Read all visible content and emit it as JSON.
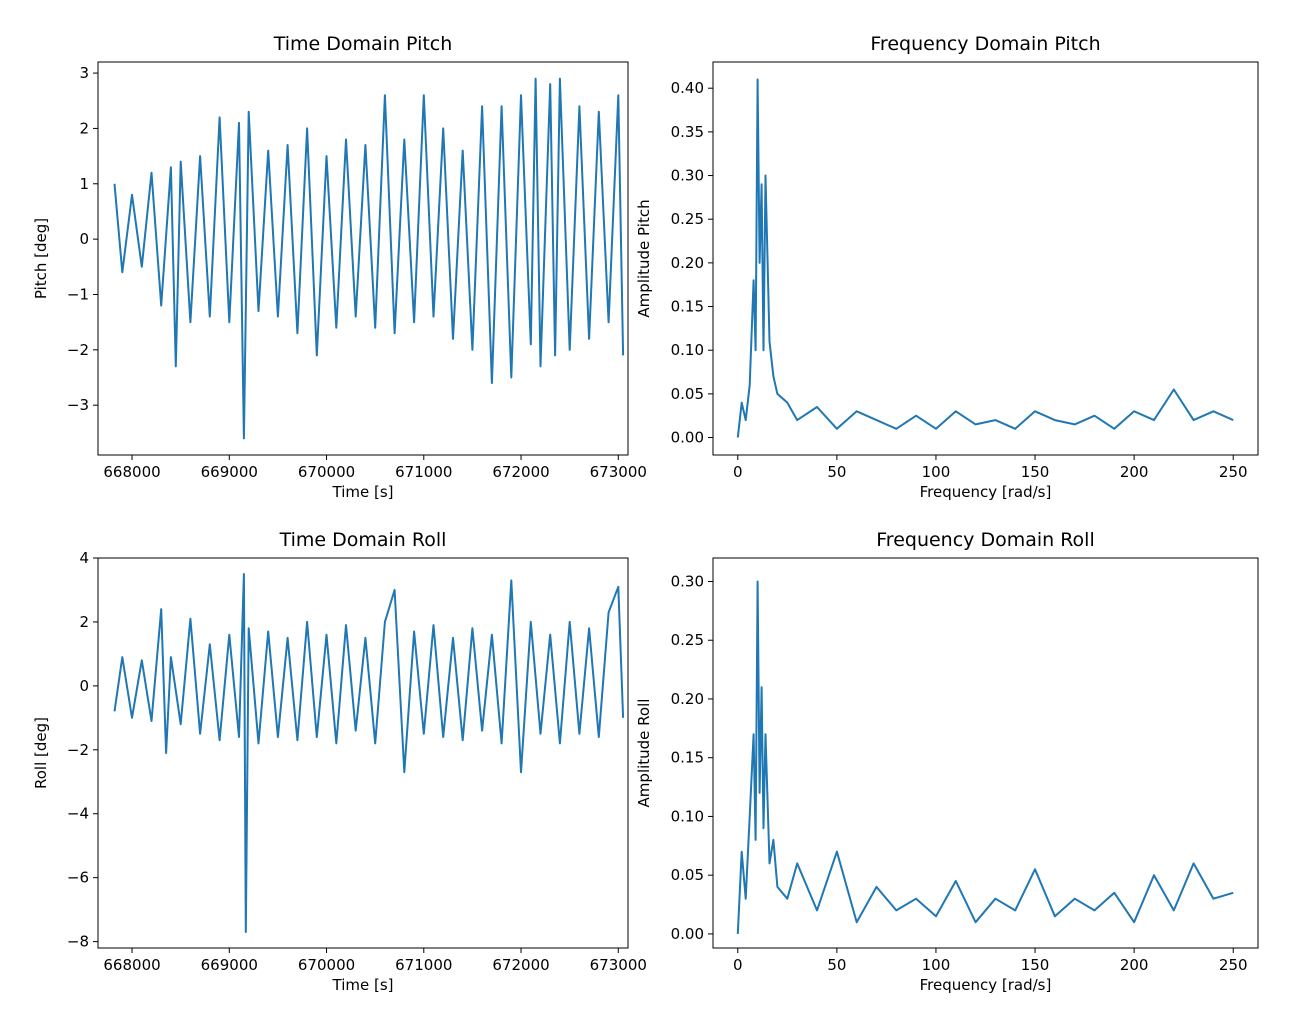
{
  "figure": {
    "line_color": "#1f77b4",
    "background": "#ffffff"
  },
  "chart_data": [
    {
      "type": "line",
      "title": "Time Domain Pitch",
      "xlabel": "Time [s]",
      "ylabel": "Pitch [deg]",
      "xlim": [
        667650,
        673100
      ],
      "ylim": [
        -3.9,
        3.2
      ],
      "xticks": [
        668000,
        669000,
        670000,
        671000,
        672000,
        673000
      ],
      "yticks": [
        -3,
        -2,
        -1,
        0,
        1,
        2,
        3
      ],
      "xtick_labels": [
        "668000",
        "669000",
        "670000",
        "671000",
        "672000",
        "673000"
      ],
      "ytick_labels": [
        "−3",
        "−2",
        "−1",
        "0",
        "1",
        "2",
        "3"
      ],
      "grid": false,
      "series": [
        {
          "x": [
            667820,
            667900,
            668000,
            668100,
            668200,
            668300,
            668400,
            668450,
            668500,
            668600,
            668700,
            668800,
            668900,
            669000,
            669100,
            669150,
            669200,
            669300,
            669400,
            669500,
            669600,
            669700,
            669800,
            669900,
            670000,
            670100,
            670200,
            670300,
            670400,
            670500,
            670600,
            670700,
            670800,
            670900,
            671000,
            671100,
            671200,
            671300,
            671400,
            671500,
            671600,
            671700,
            671800,
            671900,
            672000,
            672100,
            672150,
            672200,
            672300,
            672350,
            672400,
            672500,
            672600,
            672700,
            672800,
            672900,
            673000,
            673050
          ],
          "y": [
            1.0,
            -0.6,
            0.8,
            -0.5,
            1.2,
            -1.2,
            1.3,
            -2.3,
            1.4,
            -1.5,
            1.5,
            -1.4,
            2.2,
            -1.5,
            2.1,
            -3.6,
            2.3,
            -1.3,
            1.6,
            -1.4,
            1.7,
            -1.7,
            2.0,
            -2.1,
            1.5,
            -1.6,
            1.8,
            -1.4,
            1.7,
            -1.6,
            2.6,
            -1.7,
            1.8,
            -1.5,
            2.6,
            -1.4,
            2.0,
            -1.8,
            1.6,
            -2.0,
            2.4,
            -2.6,
            2.4,
            -2.5,
            2.6,
            -1.9,
            2.9,
            -2.3,
            2.8,
            -2.1,
            2.9,
            -2.0,
            2.4,
            -1.8,
            2.3,
            -1.5,
            2.6,
            -2.1
          ]
        }
      ]
    },
    {
      "type": "line",
      "title": "Frequency Domain Pitch",
      "xlabel": "Frequency [rad/s]",
      "ylabel": "Amplitude Pitch",
      "xlim": [
        -12.5,
        262.5
      ],
      "ylim": [
        -0.02,
        0.43
      ],
      "xticks": [
        0,
        50,
        100,
        150,
        200,
        250
      ],
      "yticks": [
        0.0,
        0.05,
        0.1,
        0.15,
        0.2,
        0.25,
        0.3,
        0.35,
        0.4
      ],
      "xtick_labels": [
        "0",
        "50",
        "100",
        "150",
        "200",
        "250"
      ],
      "ytick_labels": [
        "0.00",
        "0.05",
        "0.10",
        "0.15",
        "0.20",
        "0.25",
        "0.30",
        "0.35",
        "0.40"
      ],
      "grid": false,
      "series": [
        {
          "x": [
            0,
            2,
            4,
            6,
            8,
            9,
            10,
            11,
            12,
            13,
            14,
            16,
            18,
            20,
            25,
            30,
            40,
            50,
            60,
            70,
            80,
            90,
            100,
            110,
            120,
            130,
            140,
            150,
            160,
            170,
            180,
            190,
            200,
            210,
            220,
            230,
            240,
            250
          ],
          "y": [
            0.0,
            0.04,
            0.02,
            0.06,
            0.18,
            0.1,
            0.41,
            0.2,
            0.29,
            0.1,
            0.3,
            0.11,
            0.07,
            0.05,
            0.04,
            0.02,
            0.035,
            0.01,
            0.03,
            0.02,
            0.01,
            0.025,
            0.01,
            0.03,
            0.015,
            0.02,
            0.01,
            0.03,
            0.02,
            0.015,
            0.025,
            0.01,
            0.03,
            0.02,
            0.055,
            0.02,
            0.03,
            0.02
          ]
        }
      ]
    },
    {
      "type": "line",
      "title": "Time Domain Roll",
      "xlabel": "Time [s]",
      "ylabel": "Roll [deg]",
      "xlim": [
        667650,
        673100
      ],
      "ylim": [
        -8.2,
        4.0
      ],
      "xticks": [
        668000,
        669000,
        670000,
        671000,
        672000,
        673000
      ],
      "yticks": [
        -8,
        -6,
        -4,
        -2,
        0,
        2,
        4
      ],
      "xtick_labels": [
        "668000",
        "669000",
        "670000",
        "671000",
        "672000",
        "673000"
      ],
      "ytick_labels": [
        "−8",
        "−6",
        "−4",
        "−2",
        "0",
        "2",
        "4"
      ],
      "grid": false,
      "series": [
        {
          "x": [
            667820,
            667900,
            668000,
            668100,
            668200,
            668300,
            668350,
            668400,
            668500,
            668600,
            668700,
            668800,
            668900,
            669000,
            669100,
            669150,
            669170,
            669200,
            669300,
            669400,
            669500,
            669600,
            669700,
            669800,
            669900,
            670000,
            670100,
            670200,
            670300,
            670400,
            670500,
            670600,
            670700,
            670800,
            670900,
            671000,
            671100,
            671200,
            671300,
            671400,
            671500,
            671600,
            671700,
            671800,
            671900,
            672000,
            672100,
            672200,
            672300,
            672400,
            672500,
            672600,
            672700,
            672800,
            672900,
            673000,
            673050
          ],
          "y": [
            -0.8,
            0.9,
            -1.0,
            0.8,
            -1.1,
            2.4,
            -2.1,
            0.9,
            -1.2,
            2.1,
            -1.5,
            1.3,
            -1.7,
            1.6,
            -1.6,
            3.5,
            -7.7,
            1.8,
            -1.8,
            1.7,
            -1.6,
            1.5,
            -1.7,
            2.0,
            -1.6,
            1.6,
            -1.8,
            1.9,
            -1.4,
            1.5,
            -1.8,
            2.0,
            3.0,
            -2.7,
            1.7,
            -1.5,
            1.9,
            -1.6,
            1.5,
            -1.7,
            1.8,
            -1.4,
            1.6,
            -1.8,
            3.3,
            -2.7,
            2.0,
            -1.5,
            1.6,
            -1.8,
            2.0,
            -1.5,
            1.8,
            -1.6,
            2.3,
            3.1,
            -1.0
          ]
        }
      ]
    },
    {
      "type": "line",
      "title": "Frequency Domain Roll",
      "xlabel": "Frequency [rad/s]",
      "ylabel": "Amplitude Roll",
      "xlim": [
        -12.5,
        262.5
      ],
      "ylim": [
        -0.012,
        0.32
      ],
      "xticks": [
        0,
        50,
        100,
        150,
        200,
        250
      ],
      "yticks": [
        0.0,
        0.05,
        0.1,
        0.15,
        0.2,
        0.25,
        0.3
      ],
      "xtick_labels": [
        "0",
        "50",
        "100",
        "150",
        "200",
        "250"
      ],
      "ytick_labels": [
        "0.00",
        "0.05",
        "0.10",
        "0.15",
        "0.20",
        "0.25",
        "0.30"
      ],
      "grid": false,
      "series": [
        {
          "x": [
            0,
            2,
            4,
            6,
            8,
            9,
            10,
            11,
            12,
            13,
            14,
            16,
            18,
            20,
            25,
            30,
            40,
            50,
            60,
            70,
            80,
            90,
            100,
            110,
            120,
            130,
            140,
            150,
            160,
            170,
            180,
            190,
            200,
            210,
            220,
            230,
            240,
            250
          ],
          "y": [
            0.0,
            0.07,
            0.03,
            0.1,
            0.17,
            0.08,
            0.3,
            0.12,
            0.21,
            0.09,
            0.17,
            0.06,
            0.08,
            0.04,
            0.03,
            0.06,
            0.02,
            0.07,
            0.01,
            0.04,
            0.02,
            0.03,
            0.015,
            0.045,
            0.01,
            0.03,
            0.02,
            0.055,
            0.015,
            0.03,
            0.02,
            0.035,
            0.01,
            0.05,
            0.02,
            0.06,
            0.03,
            0.035
          ]
        }
      ]
    }
  ]
}
